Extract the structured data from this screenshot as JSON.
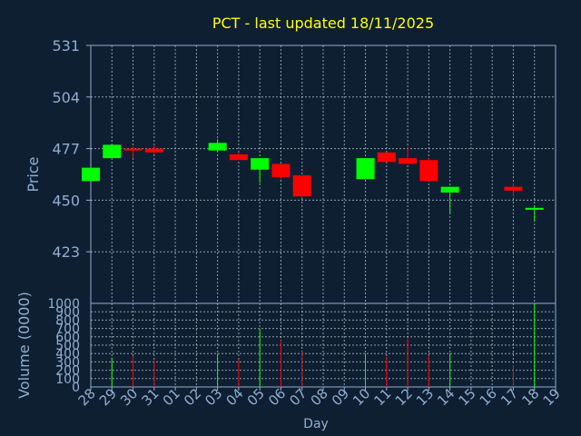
{
  "chart_data": {
    "type": "candlestick",
    "title": "PCT - last updated 18/11/2025",
    "xlabel": "Day",
    "price_panel": {
      "ylabel": "Price",
      "ylim": [
        396,
        531
      ],
      "yticks": [
        423,
        450,
        477,
        504,
        531
      ]
    },
    "volume_panel": {
      "ylabel": "Volume (0000)",
      "ylim": [
        0,
        1000
      ],
      "yticks": [
        0,
        100,
        200,
        300,
        400,
        500,
        600,
        700,
        800,
        900,
        1000
      ]
    },
    "x_ticks": [
      "28",
      "29",
      "30",
      "31",
      "01",
      "02",
      "03",
      "04",
      "05",
      "06",
      "07",
      "08",
      "09",
      "10",
      "11",
      "12",
      "13",
      "14",
      "15",
      "16",
      "17",
      "18",
      "19"
    ],
    "candles": [
      {
        "day": "28",
        "open": 460,
        "high": 467,
        "low": 460,
        "close": 467,
        "volume": 0
      },
      {
        "day": "29",
        "open": 472,
        "high": 479,
        "low": 472,
        "close": 479,
        "volume": 350
      },
      {
        "day": "30",
        "open": 477,
        "high": 478,
        "low": 472,
        "close": 476,
        "volume": 370
      },
      {
        "day": "31",
        "open": 477,
        "high": 479,
        "low": 474,
        "close": 475,
        "volume": 320
      },
      {
        "day": "03",
        "open": 476,
        "high": 482,
        "low": 476,
        "close": 480,
        "volume": 400
      },
      {
        "day": "04",
        "open": 474,
        "high": 475,
        "low": 471,
        "close": 471,
        "volume": 330
      },
      {
        "day": "05",
        "open": 466,
        "high": 472,
        "low": 459,
        "close": 472,
        "volume": 690
      },
      {
        "day": "06",
        "open": 469,
        "high": 469,
        "low": 461,
        "close": 462,
        "volume": 560
      },
      {
        "day": "07",
        "open": 463,
        "high": 463,
        "low": 451,
        "close": 452,
        "volume": 430
      },
      {
        "day": "10",
        "open": 461,
        "high": 472,
        "low": 461,
        "close": 472,
        "volume": 400
      },
      {
        "day": "11",
        "open": 475,
        "high": 475,
        "low": 470,
        "close": 470,
        "volume": 360
      },
      {
        "day": "12",
        "open": 472,
        "high": 478,
        "low": 469,
        "close": 469,
        "volume": 580
      },
      {
        "day": "13",
        "open": 471,
        "high": 472,
        "low": 460,
        "close": 460,
        "volume": 380
      },
      {
        "day": "14",
        "open": 454,
        "high": 457,
        "low": 443,
        "close": 457,
        "volume": 400
      },
      {
        "day": "17",
        "open": 457,
        "high": 459,
        "low": 452,
        "close": 455,
        "volume": 260
      },
      {
        "day": "18",
        "open": 445,
        "high": 447,
        "low": 439,
        "close": 446,
        "volume": 990
      }
    ],
    "colors": {
      "up": "#00ff00",
      "down": "#ff0000",
      "title": "#ffff00",
      "axis_text": "#8fafd0",
      "grid": "#c8d2dc",
      "background": "#0f1f32"
    },
    "grid": true
  }
}
